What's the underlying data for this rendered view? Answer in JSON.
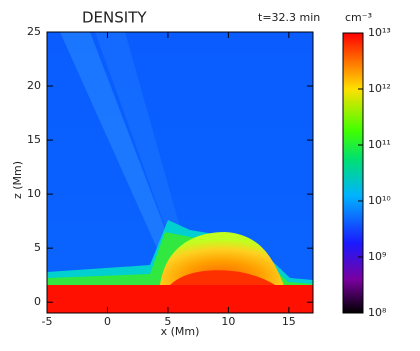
{
  "chart_data": {
    "type": "heatmap",
    "title": "DENSITY",
    "subtitle": "t=32.3 min",
    "x_label": "x (Mm)",
    "y_label": "z (Mm)",
    "xlim": [
      -5,
      17
    ],
    "xticks": [
      -5,
      0,
      5,
      10,
      15
    ],
    "ylim": [
      -1,
      25
    ],
    "yticks": [
      0,
      5,
      10,
      15,
      20,
      25
    ],
    "colorbar": {
      "label": "cm⁻³",
      "log_scale": true,
      "lim": [
        100000000,
        10000000000000
      ],
      "ticks": [
        {
          "value": 100000000,
          "label": "10⁸"
        },
        {
          "value": 1000000000,
          "label": "10⁹"
        },
        {
          "value": 10000000000,
          "label": "10¹⁰"
        },
        {
          "value": 100000000000,
          "label": "10¹¹"
        },
        {
          "value": 1000000000000,
          "label": "10¹²"
        },
        {
          "value": 10000000000000,
          "label": "10¹³"
        }
      ]
    }
  }
}
